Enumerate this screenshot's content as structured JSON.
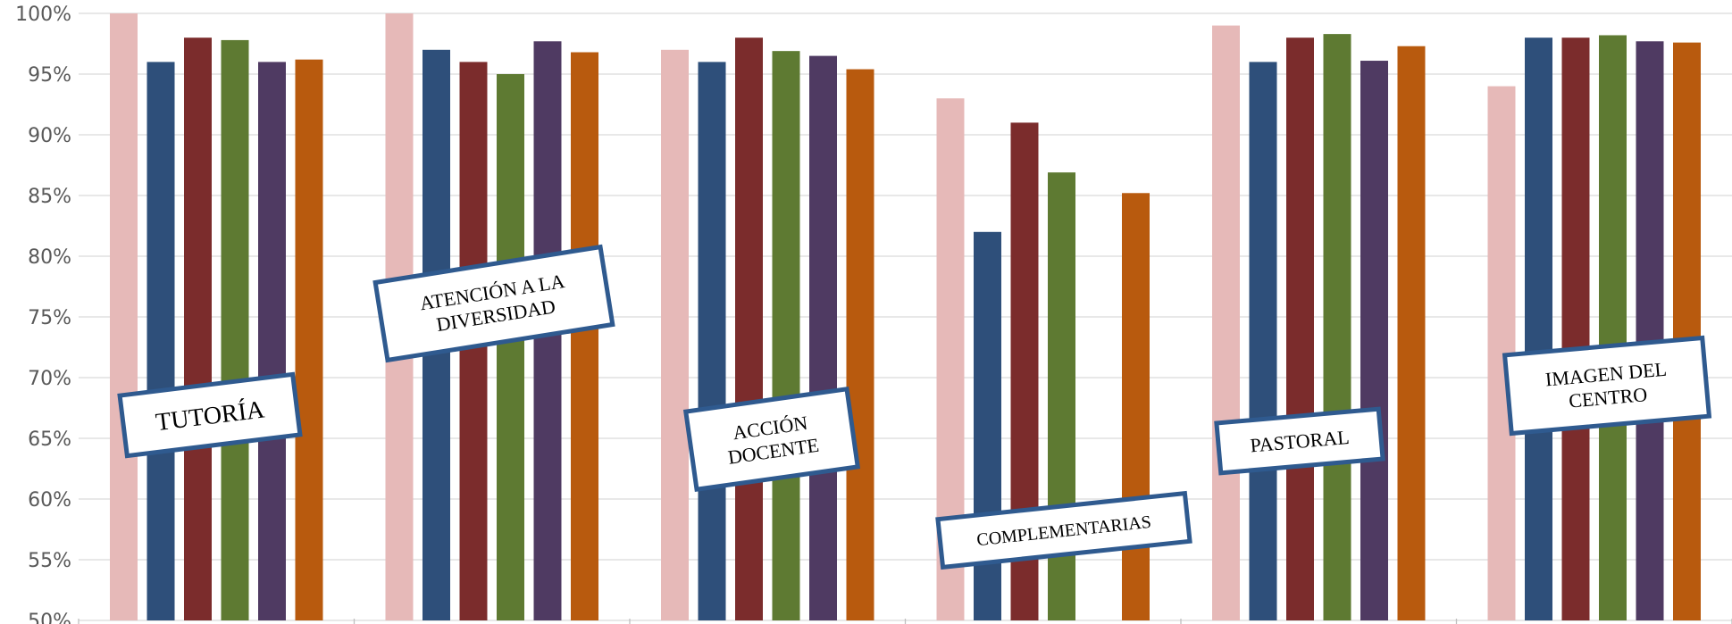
{
  "chart_data": {
    "type": "bar",
    "categories": [
      "TUTORÍA",
      "ATENCIÓN A LA DIVERSIDAD",
      "ACCIÓN DOCENTE",
      "COMPLEMENTARIAS",
      "PASTORAL",
      "IMAGEN DEL CENTRO"
    ],
    "category_labels": [
      [
        "TUTORÍA"
      ],
      [
        "ATENCIÓN A LA",
        "DIVERSIDAD"
      ],
      [
        "ACCIÓN",
        "DOCENTE"
      ],
      [
        "COMPLEMENTARIAS"
      ],
      [
        "PASTORAL"
      ],
      [
        "IMAGEN DEL",
        "CENTRO"
      ]
    ],
    "series": [
      {
        "color": "#E6B9B8",
        "values": [
          100,
          100,
          97,
          93,
          99,
          94
        ]
      },
      {
        "color": "#2E4F7A",
        "values": [
          96,
          97,
          96,
          82,
          96,
          98
        ]
      },
      {
        "color": "#7B2C2C",
        "values": [
          98,
          96,
          98,
          91,
          98,
          98
        ]
      },
      {
        "color": "#5E7A32",
        "values": [
          97.8,
          95,
          96.9,
          86.9,
          98.3,
          98.2
        ]
      },
      {
        "color": "#4F3A62",
        "values": [
          96,
          97.7,
          96.5,
          null,
          96.1,
          97.7
        ]
      },
      {
        "color": "#B85A0E",
        "values": [
          96.2,
          96.8,
          95.4,
          85.2,
          97.3,
          97.6
        ]
      }
    ],
    "y_ticks": [
      "100%",
      "95%",
      "90%",
      "85%",
      "80%",
      "75%",
      "70%",
      "65%",
      "60%",
      "55%",
      "50%"
    ],
    "ylim": [
      50,
      100
    ],
    "grid": true,
    "legend": "none"
  }
}
